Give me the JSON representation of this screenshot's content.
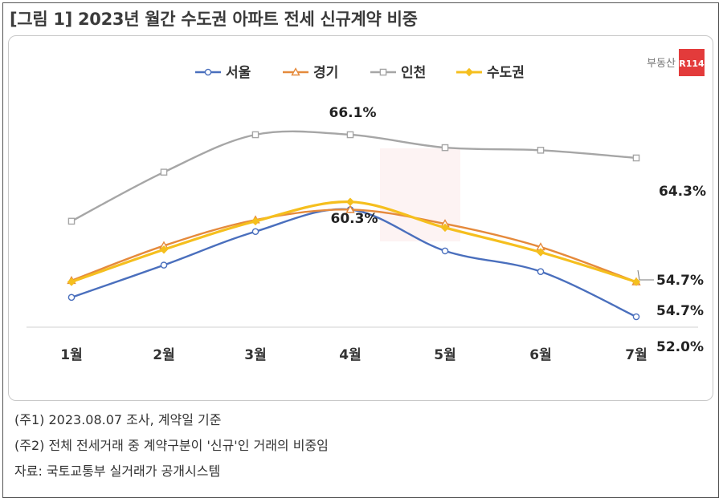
{
  "figure_title": "[그림 1] 2023년 월간 수도권 아파트 전세 신규계약 비중",
  "logo": {
    "text": "부동산",
    "badge": "R114",
    "badge_color": "#e33b3b"
  },
  "chart_data": {
    "type": "line",
    "categories": [
      "1월",
      "2월",
      "3월",
      "4월",
      "5월",
      "6월",
      "7월"
    ],
    "series": [
      {
        "name": "서울",
        "color": "#4a6fbd",
        "marker": "circle",
        "values": [
          53.5,
          56.0,
          58.6,
          60.3,
          57.1,
          55.5,
          52.0
        ]
      },
      {
        "name": "경기",
        "color": "#e58a3c",
        "marker": "triangle",
        "values": [
          54.8,
          57.5,
          59.5,
          60.3,
          59.2,
          57.4,
          54.7
        ]
      },
      {
        "name": "인천",
        "color": "#a6a6a6",
        "marker": "square",
        "values": [
          59.4,
          63.2,
          66.1,
          66.1,
          65.1,
          64.9,
          64.3
        ]
      },
      {
        "name": "수도권",
        "color": "#f5bf1e",
        "marker": "diamond",
        "values": [
          54.7,
          57.2,
          59.4,
          60.9,
          58.9,
          57.0,
          54.7
        ]
      }
    ],
    "labels": [
      {
        "text": "66.1%"
      },
      {
        "text": "64.3%"
      },
      {
        "text": "60.3%"
      },
      {
        "text": "54.7%"
      },
      {
        "text": "54.7%"
      },
      {
        "text": "52.0%"
      }
    ],
    "legend_position": "top",
    "grid": false
  },
  "notes": [
    "(주1) 2023.08.07 조사, 계약일 기준",
    "(주2) 전체 전세거래 중 계약구분이 '신규'인 거래의 비중임",
    "자료: 국토교통부 실거래가 공개시스템"
  ]
}
